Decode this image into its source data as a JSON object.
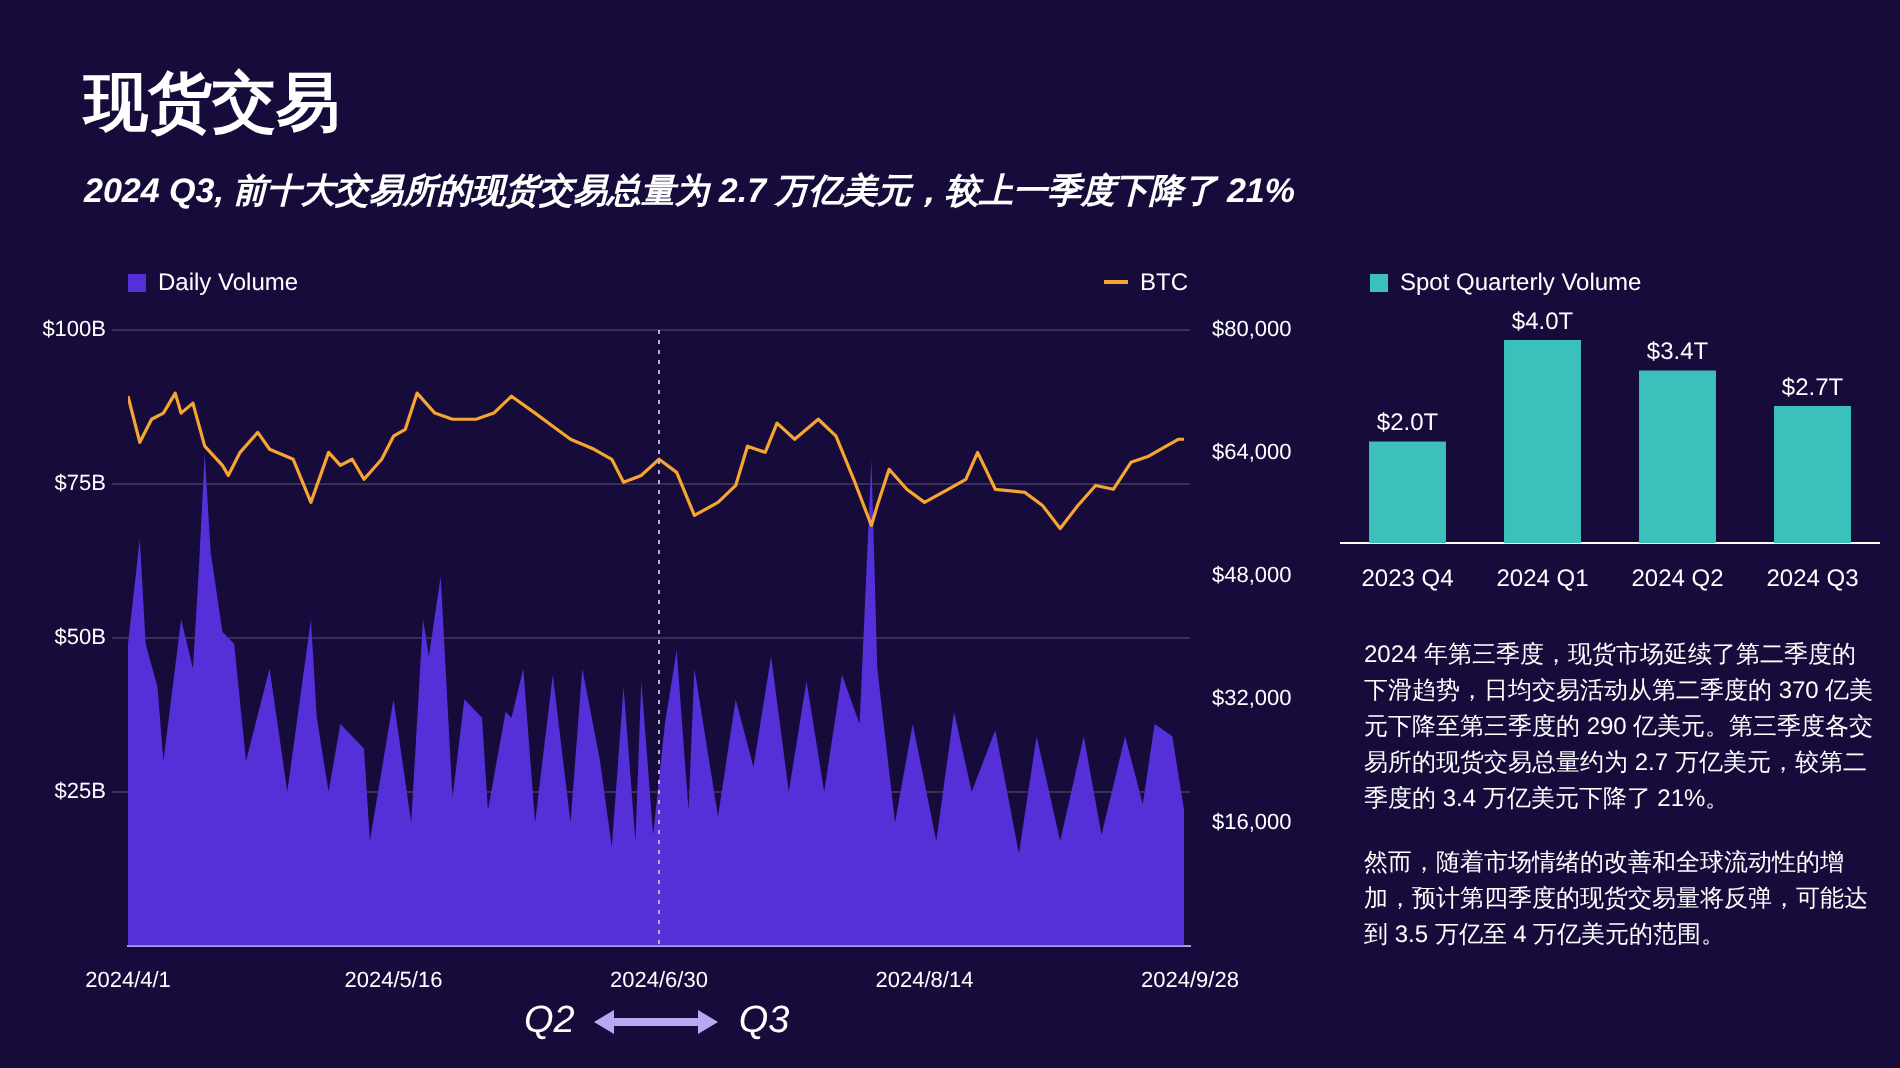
{
  "chart_data": [
    {
      "type": "line",
      "title": "现货交易",
      "subtitle": "2024 Q3, 前十大交易所的现货交易总量为 2.7 万亿美元，较上一季度下降了 21%",
      "xlim": [
        "2024-04-01",
        "2024-09-28"
      ],
      "xticks": [
        {
          "value": "2024-04-01",
          "label": "2024/4/1"
        },
        {
          "value": "2024-05-16",
          "label": "2024/5/16"
        },
        {
          "value": "2024-06-30",
          "label": "2024/6/30"
        },
        {
          "value": "2024-08-14",
          "label": "2024/8/14"
        },
        {
          "value": "2024-09-28",
          "label": "2024/9/28"
        }
      ],
      "ylim": [
        0,
        100
      ],
      "yticks": [
        {
          "value": 25,
          "label": "$25B"
        },
        {
          "value": 50,
          "label": "$50B"
        },
        {
          "value": 75,
          "label": "$75B"
        },
        {
          "value": 100,
          "label": "$100B"
        }
      ],
      "y2lim": [
        0,
        80000
      ],
      "y2ticks": [
        {
          "value": 16000,
          "label": "$16,000"
        },
        {
          "value": 32000,
          "label": "$32,000"
        },
        {
          "value": 48000,
          "label": "$48,000"
        },
        {
          "value": 64000,
          "label": "$64,000"
        },
        {
          "value": 80000,
          "label": "$80,000"
        }
      ],
      "grid": "y",
      "legend": "top",
      "marker": "none",
      "ref_lines": [
        {
          "axis": "x",
          "value": "2024-06-30",
          "color": "#b8b0d8",
          "line_style": "dotted"
        }
      ],
      "annotations": [
        "Q2",
        "Q3"
      ],
      "series": [
        {
          "name": "Daily Volume",
          "type": "area",
          "color": "#5530d8",
          "x": [
            "2024-04-01",
            "2024-04-03",
            "2024-04-04",
            "2024-04-06",
            "2024-04-07",
            "2024-04-10",
            "2024-04-12",
            "2024-04-13",
            "2024-04-14",
            "2024-04-15",
            "2024-04-17",
            "2024-04-19",
            "2024-04-21",
            "2024-04-25",
            "2024-04-28",
            "2024-05-02",
            "2024-05-03",
            "2024-05-05",
            "2024-05-07",
            "2024-05-11",
            "2024-05-12",
            "2024-05-16",
            "2024-05-19",
            "2024-05-21",
            "2024-05-22",
            "2024-05-24",
            "2024-05-26",
            "2024-05-28",
            "2024-05-31",
            "2024-06-01",
            "2024-06-04",
            "2024-06-05",
            "2024-06-07",
            "2024-06-09",
            "2024-06-12",
            "2024-06-15",
            "2024-06-17",
            "2024-06-20",
            "2024-06-22",
            "2024-06-24",
            "2024-06-26",
            "2024-06-27",
            "2024-06-29",
            "2024-07-01",
            "2024-07-03",
            "2024-07-05",
            "2024-07-06",
            "2024-07-10",
            "2024-07-13",
            "2024-07-16",
            "2024-07-19",
            "2024-07-22",
            "2024-07-25",
            "2024-07-28",
            "2024-07-31",
            "2024-08-03",
            "2024-08-05",
            "2024-08-06",
            "2024-08-09",
            "2024-08-12",
            "2024-08-16",
            "2024-08-19",
            "2024-08-22",
            "2024-08-26",
            "2024-08-30",
            "2024-09-02",
            "2024-09-06",
            "2024-09-10",
            "2024-09-13",
            "2024-09-17",
            "2024-09-20",
            "2024-09-22",
            "2024-09-25",
            "2024-09-27"
          ],
          "values": [
            49,
            66,
            49,
            42,
            30,
            53,
            45,
            61,
            80,
            64,
            51,
            49,
            30,
            45,
            25,
            53,
            37,
            25,
            36,
            32,
            17,
            40,
            20,
            53,
            47,
            60,
            24,
            40,
            37,
            22,
            38,
            37,
            45,
            20,
            44,
            20,
            45,
            30,
            16,
            42,
            17,
            43,
            18,
            36,
            48,
            22,
            45,
            21,
            40,
            29,
            47,
            25,
            43,
            25,
            44,
            36,
            79,
            45,
            20,
            36,
            17,
            38,
            25,
            35,
            15,
            34,
            17,
            34,
            18,
            34,
            23,
            36,
            34,
            22
          ]
        },
        {
          "name": "BTC",
          "type": "line",
          "axis": "y2",
          "color": "#f5a530",
          "x": [
            "2024-04-01",
            "2024-04-03",
            "2024-04-05",
            "2024-04-07",
            "2024-04-09",
            "2024-04-10",
            "2024-04-12",
            "2024-04-14",
            "2024-04-17",
            "2024-04-18",
            "2024-04-20",
            "2024-04-23",
            "2024-04-25",
            "2024-04-29",
            "2024-05-02",
            "2024-05-05",
            "2024-05-07",
            "2024-05-09",
            "2024-05-11",
            "2024-05-14",
            "2024-05-16",
            "2024-05-18",
            "2024-05-20",
            "2024-05-23",
            "2024-05-26",
            "2024-05-30",
            "2024-06-02",
            "2024-06-05",
            "2024-06-09",
            "2024-06-12",
            "2024-06-15",
            "2024-06-19",
            "2024-06-22",
            "2024-06-24",
            "2024-06-27",
            "2024-06-30",
            "2024-07-03",
            "2024-07-06",
            "2024-07-10",
            "2024-07-13",
            "2024-07-15",
            "2024-07-18",
            "2024-07-20",
            "2024-07-23",
            "2024-07-27",
            "2024-07-30",
            "2024-08-02",
            "2024-08-05",
            "2024-08-06",
            "2024-08-08",
            "2024-08-11",
            "2024-08-14",
            "2024-08-18",
            "2024-08-21",
            "2024-08-23",
            "2024-08-26",
            "2024-08-31",
            "2024-09-03",
            "2024-09-06",
            "2024-09-09",
            "2024-09-12",
            "2024-09-15",
            "2024-09-18",
            "2024-09-21",
            "2024-09-23",
            "2024-09-26",
            "2024-09-27"
          ],
          "values": [
            71400,
            65400,
            68400,
            69200,
            71800,
            69200,
            70500,
            64900,
            62400,
            61100,
            64100,
            66700,
            64500,
            63200,
            57600,
            64100,
            62400,
            63200,
            60600,
            63200,
            66200,
            67100,
            71800,
            69200,
            68400,
            68400,
            69200,
            71400,
            69200,
            67500,
            65800,
            64500,
            63200,
            60200,
            61100,
            63200,
            61500,
            55900,
            57600,
            59800,
            64900,
            64100,
            67900,
            65800,
            68400,
            66200,
            60600,
            54600,
            57200,
            61900,
            59300,
            57600,
            59300,
            60600,
            64100,
            59300,
            58900,
            57200,
            54200,
            57200,
            59800,
            59300,
            62800,
            63600,
            64500,
            65800,
            65800
          ]
        }
      ]
    },
    {
      "type": "bar",
      "categories": [
        "2023 Q4",
        "2024 Q1",
        "2024 Q2",
        "2024 Q3"
      ],
      "legend": "top left",
      "series": [
        {
          "name": "Spot Quarterly Volume",
          "color": "#3cc0bc",
          "values": [
            2.0,
            4.0,
            3.4,
            2.7
          ],
          "value_labels": [
            "$2.0T",
            "$4.0T",
            "$3.4T",
            "$2.7T"
          ]
        }
      ],
      "annotations": [
        "2024 年第三季度，现货市场延续了第二季度的下滑趋势，日均交易活动从第二季度的 370 亿美元下降至第三季度的 290 亿美元。第三季度各交易所的现货交易总量约为 2.7 万亿美元，较第二季度的 3.4 万亿美元下降了 21%。",
        "然而，随着市场情绪的改善和全球流动性的增加，预计第四季度的现货交易量将反弹，可能达到 3.5 万亿至 4 万亿美元的范围。"
      ]
    }
  ]
}
